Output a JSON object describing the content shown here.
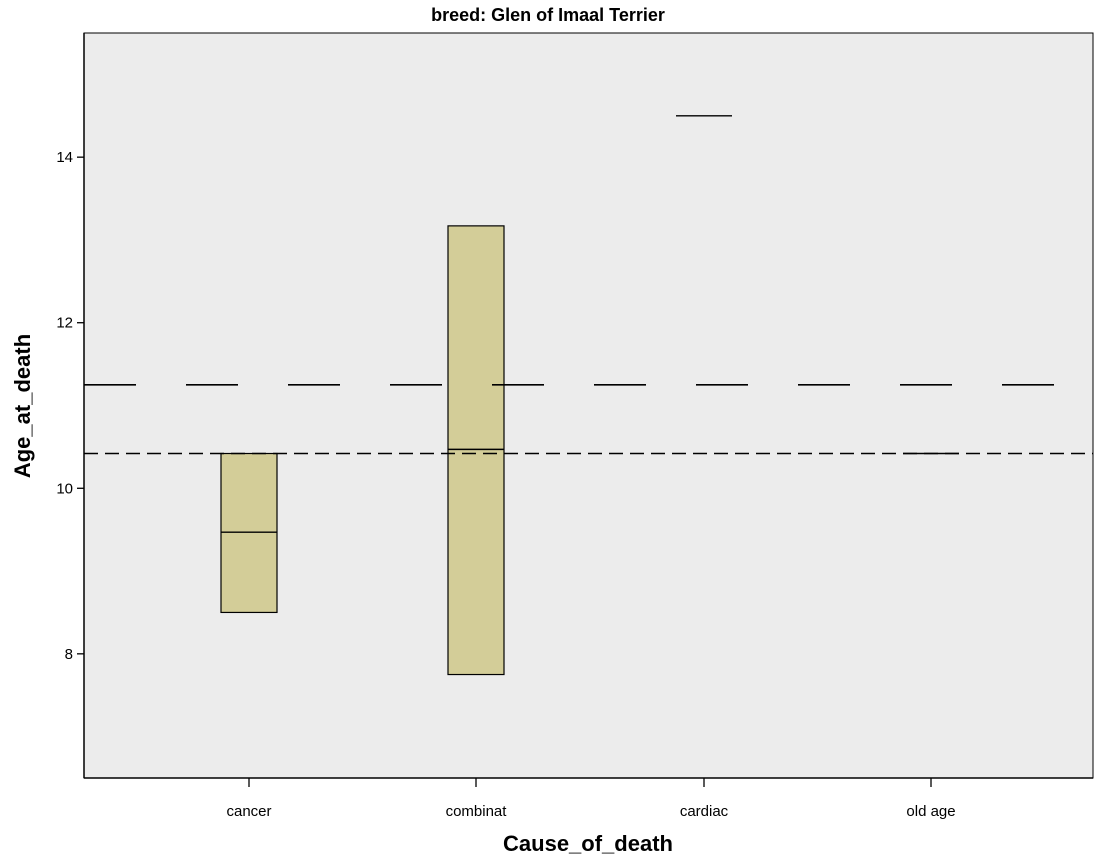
{
  "chart_data": {
    "type": "boxplot",
    "title": "breed: Glen of Imaal Terrier",
    "xlabel": "Cause_of_death",
    "ylabel": "Age_at_death",
    "categories": [
      "cancer",
      "combinat",
      "cardiac",
      "old age"
    ],
    "ylim": [
      6.5,
      15.5
    ],
    "yticks": [
      8,
      10,
      12,
      14
    ],
    "grid": false,
    "legend": "none",
    "boxes": [
      {
        "category": "cancer",
        "q1": 8.5,
        "median": 9.47,
        "q3": 10.42
      },
      {
        "category": "combinat",
        "q1": 7.75,
        "median": 10.47,
        "q3": 13.17
      },
      {
        "category": "cardiac",
        "q1": 14.5,
        "median": 14.5,
        "q3": 14.5
      },
      {
        "category": "old age",
        "q1": 10.42,
        "median": 10.42,
        "q3": 10.42
      }
    ],
    "reference_lines": [
      {
        "value": 11.25,
        "style": "long-dash"
      },
      {
        "value": 10.42,
        "style": "short-dash"
      }
    ],
    "colors": {
      "plot_background": "#ececec",
      "box_fill": "#d3cd98",
      "stroke": "#000000"
    }
  }
}
